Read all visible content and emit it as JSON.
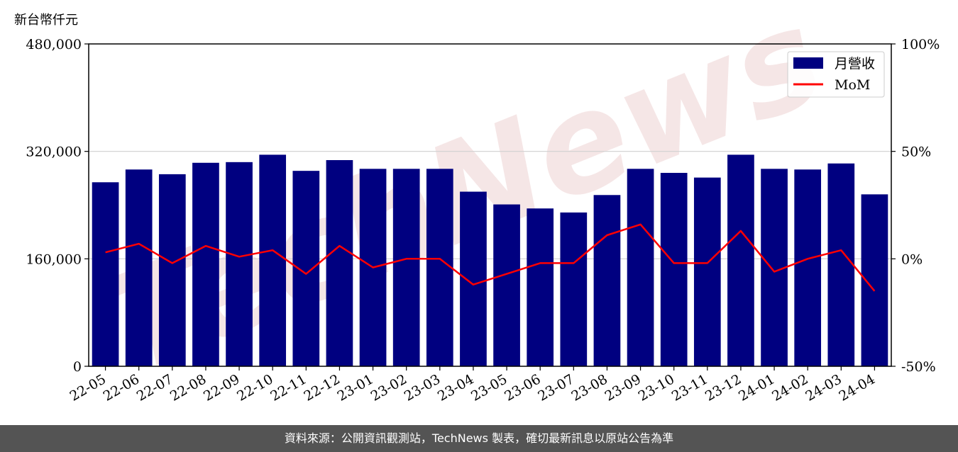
{
  "chart_data": {
    "type": "bar",
    "unit_label": "新台幣仟元",
    "categories": [
      "22-05",
      "22-06",
      "22-07",
      "22-08",
      "22-09",
      "22-10",
      "22-11",
      "22-12",
      "23-01",
      "23-02",
      "23-03",
      "23-04",
      "23-05",
      "23-06",
      "23-07",
      "23-08",
      "23-09",
      "23-10",
      "23-11",
      "23-12",
      "24-01",
      "24-02",
      "24-03",
      "24-04"
    ],
    "series": [
      {
        "name": "月營收",
        "type": "bar",
        "axis": "left",
        "color": "#000080",
        "values": [
          274000,
          293000,
          286000,
          303000,
          304000,
          315000,
          291000,
          307000,
          294000,
          294000,
          294000,
          260000,
          241000,
          235000,
          229000,
          255000,
          294000,
          288000,
          281000,
          315000,
          294000,
          293000,
          302000,
          256000
        ]
      },
      {
        "name": "MoM",
        "type": "line",
        "axis": "right",
        "color": "#ff0000",
        "values": [
          3,
          7,
          -2,
          6,
          1,
          4,
          -7,
          6,
          -4,
          0,
          0,
          -12,
          -7,
          -2,
          -2,
          11,
          16,
          -2,
          -2,
          13,
          -6,
          0,
          4,
          -15
        ]
      }
    ],
    "y_left": {
      "range": [
        0,
        480000
      ],
      "ticks": [
        "0",
        "160,000",
        "320,000",
        "480,000"
      ]
    },
    "y_right": {
      "range": [
        -50,
        100
      ],
      "ticks": [
        "-50%",
        "0%",
        "50%",
        "100%"
      ]
    },
    "grid": "horizontal",
    "legend_position": "top-right"
  },
  "watermark": "TechNews",
  "footer": "資料來源：公開資訊觀測站，TechNews 製表，確切最新訊息以原站公告為準"
}
